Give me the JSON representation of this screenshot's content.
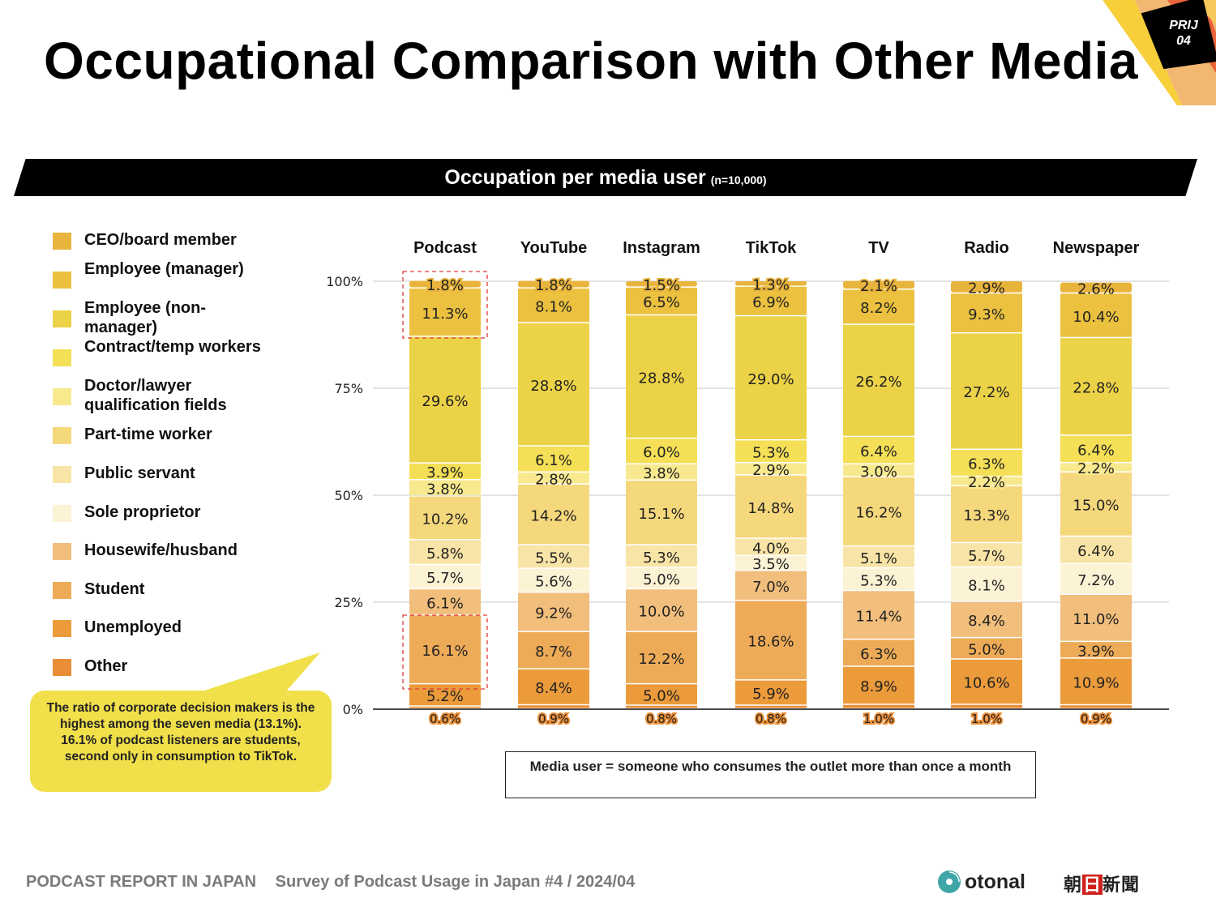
{
  "header": {
    "title": "Occupational Comparison with Other Media",
    "badge_line1": "PRIJ",
    "badge_line2": "04"
  },
  "banner": {
    "title": "Occupation per media user",
    "sample": "(n=10,000)"
  },
  "callout": {
    "text": "The ratio of corporate decision makers is the highest among the seven media (13.1%). 16.1% of podcast listeners are students, second only in consumption to TikTok."
  },
  "note": {
    "text": "Media user = someone who consumes the outlet more than once a month"
  },
  "footer": {
    "report": "PODCAST REPORT IN JAPAN",
    "survey": "Survey of Podcast Usage in Japan #4 / 2024/04",
    "logo_otonal": "otonal",
    "logo_asahi_1": "朝",
    "logo_asahi_2": "日",
    "logo_asahi_3": "新聞"
  },
  "chart_data": {
    "type": "bar",
    "stacked": true,
    "normalized": true,
    "title": "Occupation per media user (n=10,000)",
    "categories": [
      "Podcast",
      "YouTube",
      "Instagram",
      "TikTok",
      "TV",
      "Radio",
      "Newspaper"
    ],
    "ylim": [
      0,
      100
    ],
    "yticks": [
      "0%",
      "25%",
      "50%",
      "75%",
      "100%"
    ],
    "grid": true,
    "legend_position": "left",
    "series": [
      {
        "name": "CEO/board member",
        "color": "#E9B43C",
        "values": [
          1.8,
          1.8,
          1.5,
          1.3,
          2.1,
          2.9,
          2.6
        ]
      },
      {
        "name": "Employee (manager)",
        "color": "#EBC13F",
        "values": [
          11.3,
          8.1,
          6.5,
          6.9,
          8.2,
          9.3,
          10.4
        ]
      },
      {
        "name": "Employee (non-manager)",
        "color": "#ECD247",
        "values": [
          29.6,
          28.8,
          28.8,
          29.0,
          26.2,
          27.2,
          22.8
        ]
      },
      {
        "name": "Contract/temp workers",
        "color": "#F4DF56",
        "values": [
          3.9,
          6.1,
          6.0,
          5.3,
          6.4,
          6.3,
          6.4
        ]
      },
      {
        "name": "Doctor/lawyer qualification fields",
        "color": "#F8E98F",
        "values": [
          3.8,
          2.8,
          3.8,
          2.9,
          3.0,
          2.2,
          2.2
        ]
      },
      {
        "name": "Part-time worker",
        "color": "#F6D87C",
        "values": [
          10.2,
          14.2,
          15.1,
          14.8,
          16.2,
          13.3,
          15.0
        ]
      },
      {
        "name": "Public servant",
        "color": "#F8E4A6",
        "values": [
          5.8,
          5.5,
          5.3,
          4.0,
          5.1,
          5.7,
          6.4
        ]
      },
      {
        "name": "Sole proprietor",
        "color": "#FCF2D4",
        "values": [
          5.7,
          5.6,
          5.0,
          3.5,
          5.3,
          8.1,
          7.2
        ]
      },
      {
        "name": "Housewife/husband",
        "color": "#F1BE7C",
        "values": [
          6.1,
          9.2,
          10.0,
          7.0,
          11.4,
          8.4,
          11.0
        ]
      },
      {
        "name": "Student",
        "color": "#EEAB57",
        "values": [
          16.1,
          8.7,
          12.2,
          18.6,
          6.3,
          5.0,
          3.9
        ]
      },
      {
        "name": "Unemployed",
        "color": "#EC9B3B",
        "values": [
          5.2,
          8.4,
          5.0,
          5.9,
          8.9,
          10.6,
          10.9
        ]
      },
      {
        "name": "Other",
        "color": "#E98D36",
        "values": [
          0.6,
          0.9,
          0.8,
          0.8,
          1.0,
          1.0,
          0.9
        ]
      }
    ],
    "highlight_color": "#E0383B"
  }
}
